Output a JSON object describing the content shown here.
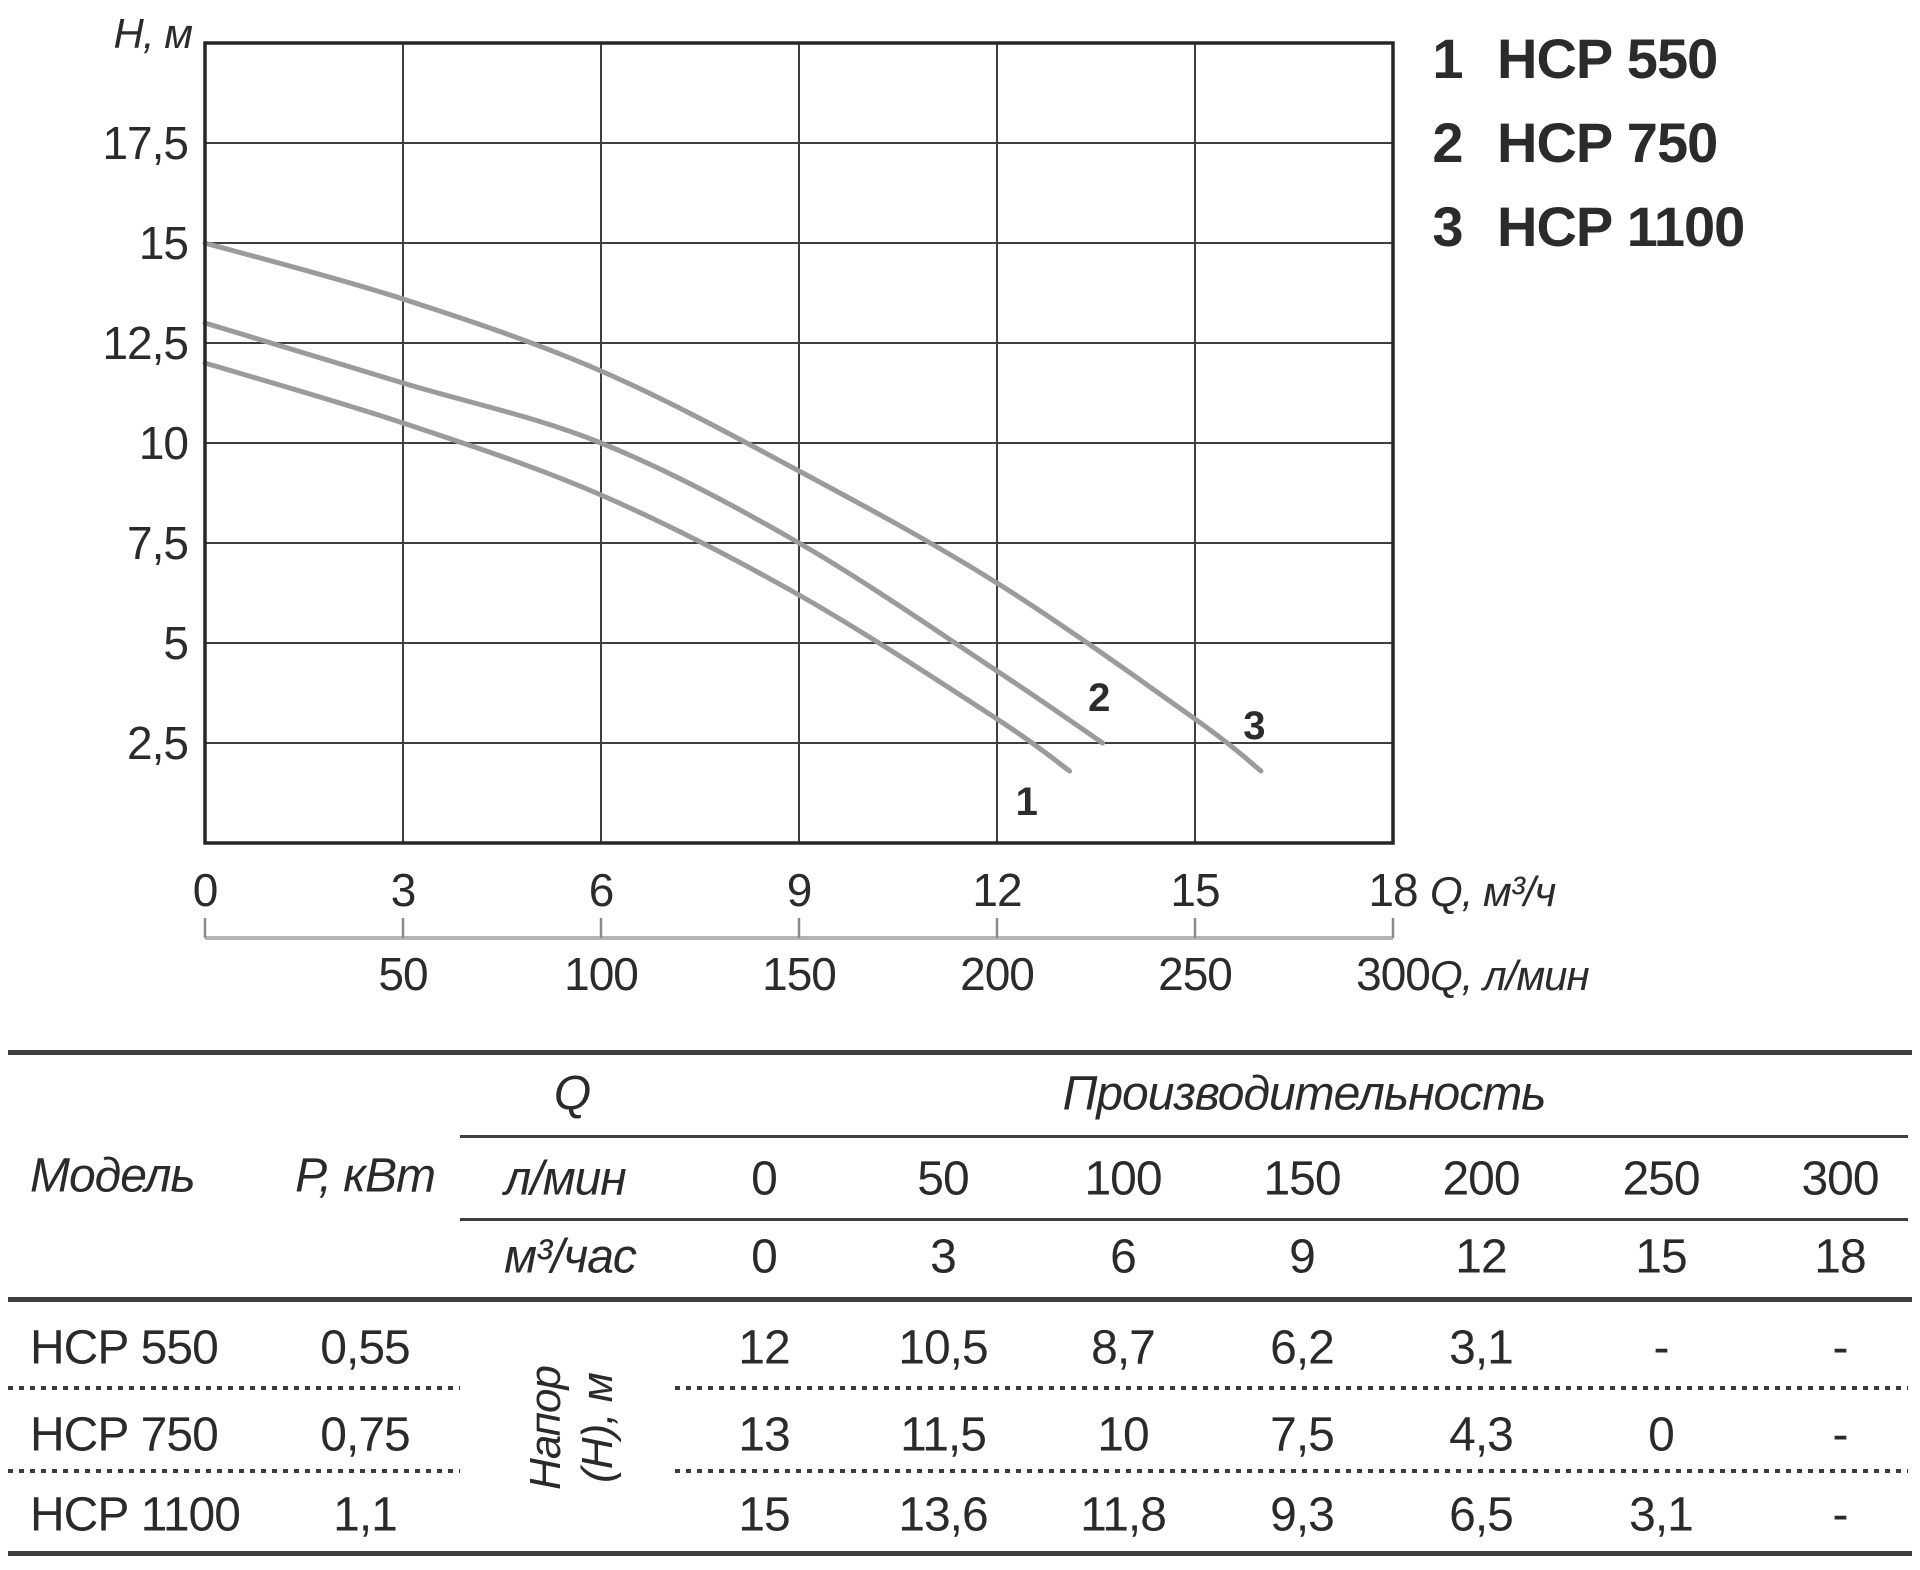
{
  "chart_data": {
    "type": "line",
    "title": "",
    "ylabel": "Н, м",
    "xlabel": "Q, м³/ч",
    "xlabel_secondary": "Q, л/мин",
    "xlim": [
      0,
      18
    ],
    "ylim": [
      0,
      20
    ],
    "grid": true,
    "x_ticks": [
      0,
      3,
      6,
      9,
      12,
      15,
      18
    ],
    "x_tick_labels": [
      "0",
      "3",
      "6",
      "9",
      "12",
      "15",
      "18"
    ],
    "y_ticks": [
      2.5,
      5,
      7.5,
      10,
      12.5,
      15,
      17.5
    ],
    "y_tick_labels": [
      "2,5",
      "5",
      "7,5",
      "10",
      "12,5",
      "15",
      "17,5"
    ],
    "secondary_x_ticks": [
      50,
      100,
      150,
      200,
      250,
      300
    ],
    "secondary_x_tick_labels": [
      "50",
      "100",
      "150",
      "200",
      "250",
      "300"
    ],
    "secondary_to_primary_scale": 0.06,
    "legend_position": "top-right",
    "series": [
      {
        "num": "1",
        "name": "НСР 550",
        "color": "#9b9b9b",
        "points": [
          [
            0,
            12
          ],
          [
            3,
            10.5
          ],
          [
            6,
            8.7
          ],
          [
            9,
            6.2
          ],
          [
            12,
            3.1
          ],
          [
            13.1,
            1.8
          ]
        ],
        "label_at": [
          12.45,
          1.05
        ]
      },
      {
        "num": "2",
        "name": "НСР 750",
        "color": "#9b9b9b",
        "points": [
          [
            0,
            13
          ],
          [
            3,
            11.5
          ],
          [
            6,
            10
          ],
          [
            9,
            7.5
          ],
          [
            12,
            4.3
          ],
          [
            13.6,
            2.5
          ]
        ],
        "label_at": [
          13.55,
          3.65
        ]
      },
      {
        "num": "3",
        "name": "НСР 1100",
        "color": "#9b9b9b",
        "points": [
          [
            0,
            15
          ],
          [
            3,
            13.6
          ],
          [
            6,
            11.8
          ],
          [
            9,
            9.3
          ],
          [
            12,
            6.5
          ],
          [
            15,
            3.1
          ],
          [
            16,
            1.8
          ]
        ],
        "label_at": [
          15.9,
          2.95
        ]
      }
    ],
    "legend": [
      {
        "num": "1",
        "label": "НСР 550"
      },
      {
        "num": "2",
        "label": "НСР 750"
      },
      {
        "num": "3",
        "label": "НСР 1100"
      }
    ]
  },
  "table": {
    "model_header": "Модель",
    "power_header": "Р, кВт",
    "q_header": "Q",
    "performance_header": "Производительность",
    "unit_lmin": "л/мин",
    "unit_m3h": "м³/час",
    "head_label_line1": "Напор",
    "head_label_line2": "(Н), м",
    "flow_lmin": [
      "0",
      "50",
      "100",
      "150",
      "200",
      "250",
      "300"
    ],
    "flow_m3h": [
      "0",
      "3",
      "6",
      "9",
      "12",
      "15",
      "18"
    ],
    "rows": [
      {
        "model": "НСР 550",
        "power": "0,55",
        "values": [
          "12",
          "10,5",
          "8,7",
          "6,2",
          "3,1",
          "-",
          "-"
        ]
      },
      {
        "model": "НСР 750",
        "power": "0,75",
        "values": [
          "13",
          "11,5",
          "10",
          "7,5",
          "4,3",
          "0",
          "-"
        ]
      },
      {
        "model": "НСР 1100",
        "power": "1,1",
        "values": [
          "15",
          "13,6",
          "11,8",
          "9,3",
          "6,5",
          "3,1",
          "-"
        ]
      }
    ]
  }
}
